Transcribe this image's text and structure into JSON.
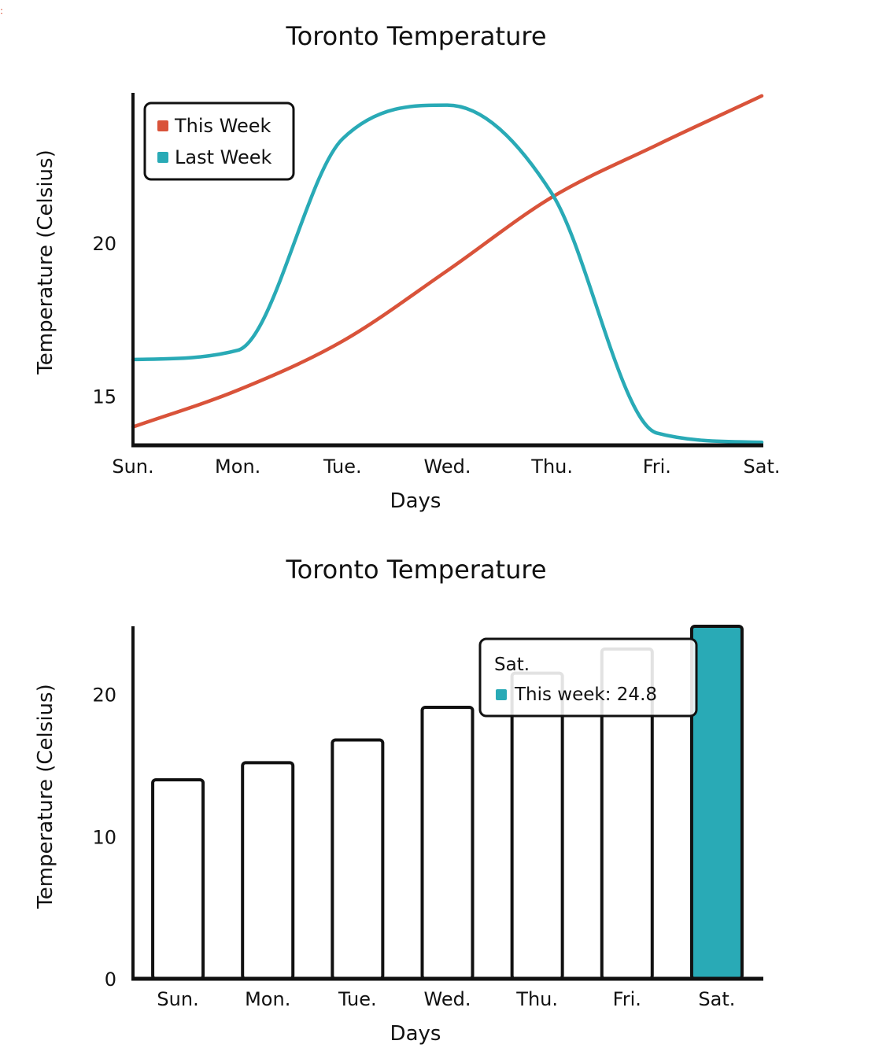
{
  "colors": {
    "this_week": "#d9533a",
    "last_week": "#29aab6",
    "axis": "#111111",
    "highlight": "#29aab6"
  },
  "chart_data": [
    {
      "type": "line",
      "title": "Toronto Temperature",
      "xlabel": "Days",
      "ylabel": "Temperature (Celsius)",
      "categories": [
        "Sun.",
        "Mon.",
        "Tue.",
        "Wed.",
        "Thu.",
        "Fri.",
        "Sat."
      ],
      "y_ticks": [
        15,
        20
      ],
      "ylim": [
        13.4,
        24.9
      ],
      "grid": false,
      "legend_position": "top-left",
      "series": [
        {
          "name": "This Week",
          "color": "#d9533a",
          "values": [
            14.0,
            15.2,
            16.8,
            19.1,
            21.5,
            23.2,
            24.8
          ]
        },
        {
          "name": "Last Week",
          "color": "#29aab6",
          "values": [
            16.2,
            16.5,
            23.4,
            24.5,
            21.6,
            13.8,
            13.5
          ]
        }
      ]
    },
    {
      "type": "bar",
      "title": "Toronto Temperature",
      "xlabel": "Days",
      "ylabel": "Temperature (Celsius)",
      "categories": [
        "Sun.",
        "Mon.",
        "Tue.",
        "Wed.",
        "Thu.",
        "Fri.",
        "Sat."
      ],
      "values": [
        14.0,
        15.2,
        16.8,
        19.1,
        21.5,
        23.2,
        24.8
      ],
      "y_ticks": [
        0,
        10,
        20
      ],
      "ylim": [
        0,
        24.8
      ],
      "grid": false,
      "highlighted_category": "Sat.",
      "tooltip": {
        "title": "Sat.",
        "label": "This week: 24.8"
      }
    }
  ]
}
